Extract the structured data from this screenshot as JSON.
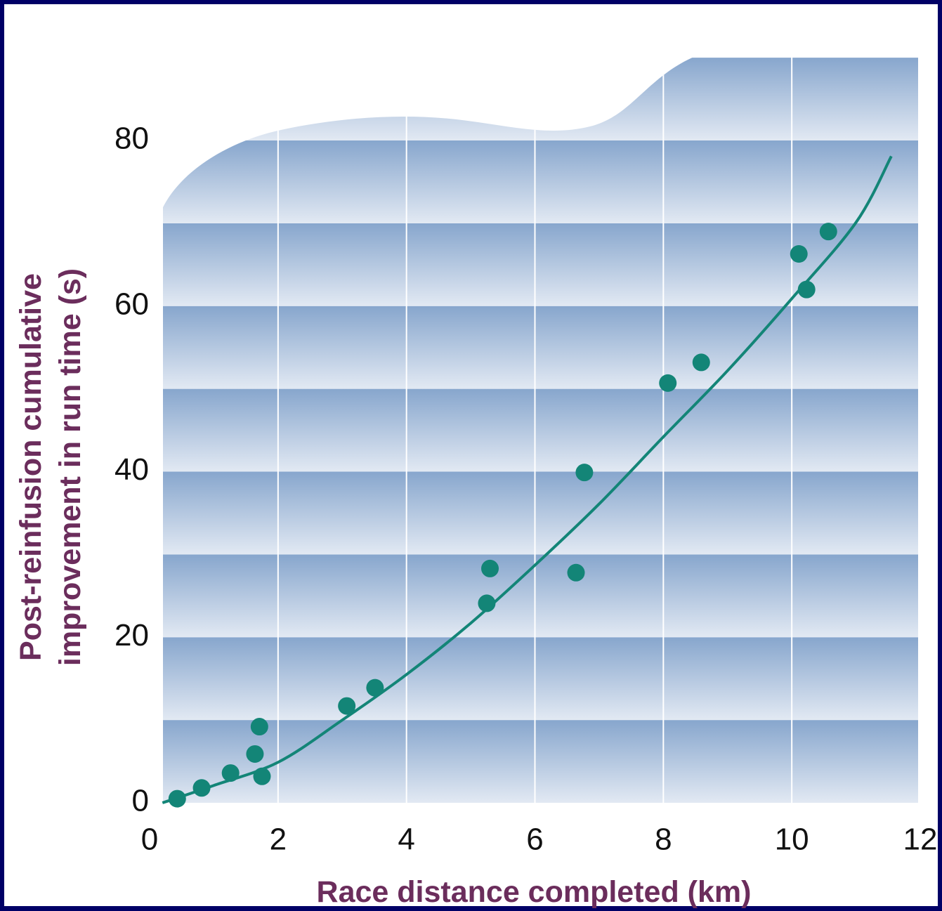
{
  "chart_data": {
    "type": "scatter",
    "xlabel": "Race distance completed (km)",
    "ylabel": [
      "Post-reinfusion cumulative",
      "improvement in run time (s)"
    ],
    "x": [
      0.43,
      0.81,
      1.26,
      1.64,
      1.71,
      1.75,
      3.07,
      3.51,
      5.25,
      5.3,
      6.64,
      6.77,
      8.07,
      8.59,
      10.11,
      10.23,
      10.57
    ],
    "values": [
      0.5,
      1.8,
      3.6,
      5.9,
      9.2,
      3.2,
      11.7,
      13.9,
      24.1,
      28.3,
      27.8,
      39.9,
      50.7,
      53.2,
      66.3,
      62.0,
      69.0
    ],
    "color": "#138577",
    "fit": {
      "x": [
        0.2,
        1,
        2,
        3,
        4,
        5,
        6,
        7,
        8,
        9,
        10,
        11,
        11.55
      ],
      "values": [
        0,
        2.1,
        4.9,
        10,
        15.5,
        21.7,
        28.7,
        36.1,
        44.2,
        52.2,
        60.9,
        70.1,
        78.1
      ],
      "color": "#138577"
    },
    "xlim": [
      0,
      12
    ],
    "ylim": [
      0,
      80
    ],
    "xticks": [
      0,
      2,
      4,
      6,
      8,
      10,
      12
    ],
    "yticks": [
      0,
      20,
      40,
      60,
      80
    ],
    "grid": true
  }
}
